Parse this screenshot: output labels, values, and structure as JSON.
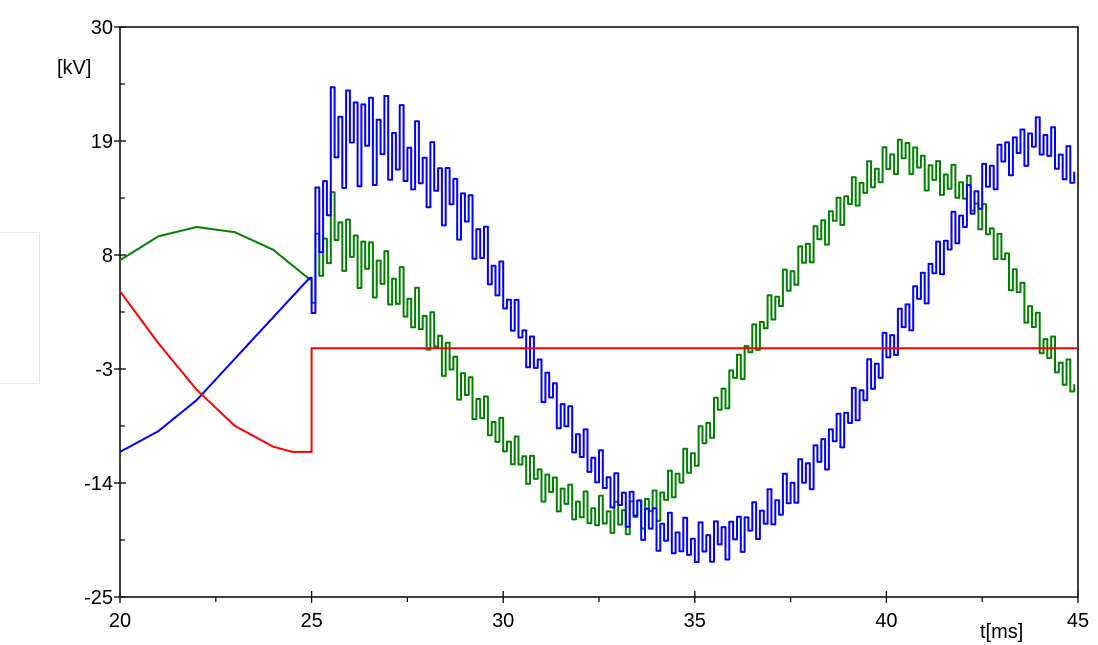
{
  "chart_data": {
    "type": "line",
    "xlabel": "t[ms]",
    "ylabel": "[kV]",
    "xlim": [
      20,
      45
    ],
    "ylim": [
      -25,
      30
    ],
    "x_ticks": [
      "20",
      "25",
      "30",
      "35",
      "40",
      "45"
    ],
    "y_ticks": [
      "30",
      "19",
      "8",
      "-3",
      "-14",
      "-25"
    ],
    "grid": false,
    "series": [
      {
        "color": "#008000",
        "x": [
          20,
          21,
          22,
          23,
          24,
          25,
          25.5,
          26,
          27,
          28,
          29,
          30,
          31,
          32,
          33,
          34,
          35,
          36,
          37,
          38,
          39,
          40,
          40.5,
          41,
          42,
          43,
          44,
          45
        ],
        "y": [
          7.5,
          9.8,
          10.7,
          10.2,
          8.5,
          5.5,
          11,
          8.5,
          5.5,
          1,
          -5,
          -10,
          -14,
          -16.5,
          -17.5,
          -16,
          -11,
          -3.5,
          3,
          9,
          13.5,
          17,
          18,
          16,
          14.5,
          8,
          0,
          -5.5
        ]
      },
      {
        "color": "#0000ff",
        "x": [
          20,
          21,
          22,
          23,
          24,
          25,
          25.5,
          26,
          27,
          28,
          29,
          30,
          31,
          32,
          33,
          34,
          35,
          36,
          37,
          38,
          39,
          40,
          41,
          42,
          43,
          44,
          45
        ],
        "y": [
          -11,
          -9,
          -6,
          -2,
          2,
          6,
          19,
          20,
          19,
          16,
          12,
          4,
          -4,
          -10.5,
          -15.5,
          -18.5,
          -20,
          -19,
          -16.5,
          -12.5,
          -7.5,
          -1,
          5.5,
          12,
          17.5,
          19.5,
          15
        ]
      },
      {
        "color": "#ff0000",
        "x": [
          20,
          21,
          22,
          23,
          24,
          24.5,
          25,
          25,
          45
        ],
        "y": [
          4.5,
          -0.5,
          -5,
          -8.5,
          -10.5,
          -11,
          -11,
          -1,
          -1
        ]
      }
    ]
  }
}
